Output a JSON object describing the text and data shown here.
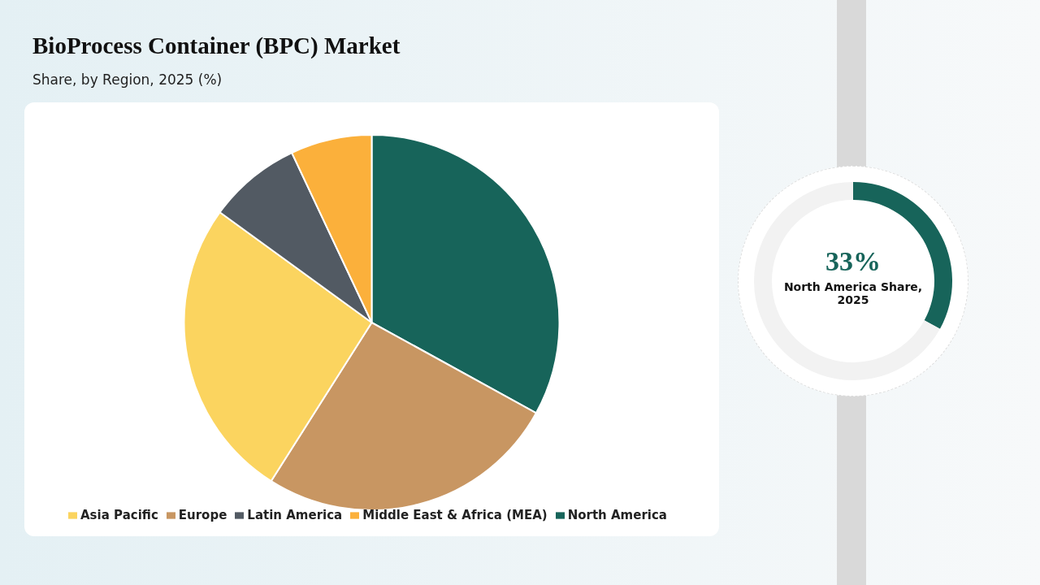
{
  "chart_data": [
    {
      "type": "pie",
      "title": "BioProcess Container (BPC) Market",
      "subtitle": "Share, by Region, 2025 (%)",
      "categories": [
        "North America",
        "Europe",
        "Asia Pacific",
        "Latin America",
        "Middle East & Africa (MEA)"
      ],
      "values": [
        33,
        26,
        26,
        8,
        7
      ],
      "colors": [
        "#17645a",
        "#c89662",
        "#fbd45f",
        "#525a63",
        "#fbb03b"
      ],
      "legend": "bottom"
    },
    {
      "type": "donut",
      "categories": [
        null,
        null
      ],
      "values": [
        33,
        67
      ],
      "colors": [
        "#17645a",
        "#f2f2f2"
      ],
      "annotations": [
        "33%",
        "North America Share, 2025"
      ]
    }
  ]
}
